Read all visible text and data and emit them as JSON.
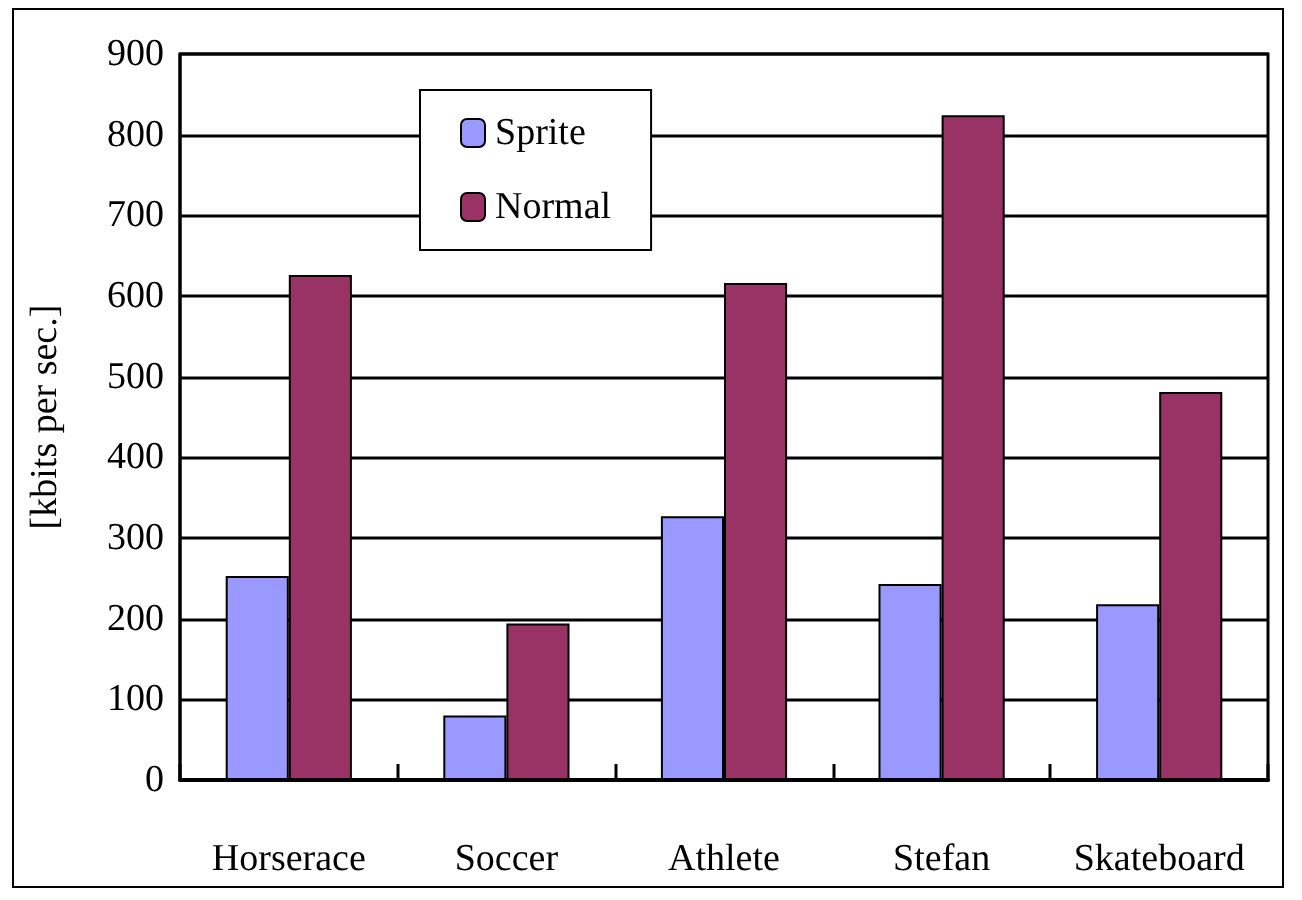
{
  "chart_data": {
    "type": "bar",
    "ylabel": "[kbits per sec.]",
    "categories": [
      "Horserace",
      "Soccer",
      "Athlete",
      "Stefan",
      "Skateboard"
    ],
    "series": [
      {
        "name": "Sprite",
        "color": "#9999ff",
        "values": [
          253,
          80,
          327,
          243,
          218
        ]
      },
      {
        "name": "Normal",
        "color": "#993366",
        "values": [
          626,
          194,
          616,
          824,
          481
        ]
      }
    ],
    "ylim": [
      0,
      900
    ],
    "yticks": [
      0,
      100,
      200,
      300,
      400,
      500,
      600,
      700,
      800,
      900
    ],
    "grid": "y",
    "legend": "top left"
  }
}
